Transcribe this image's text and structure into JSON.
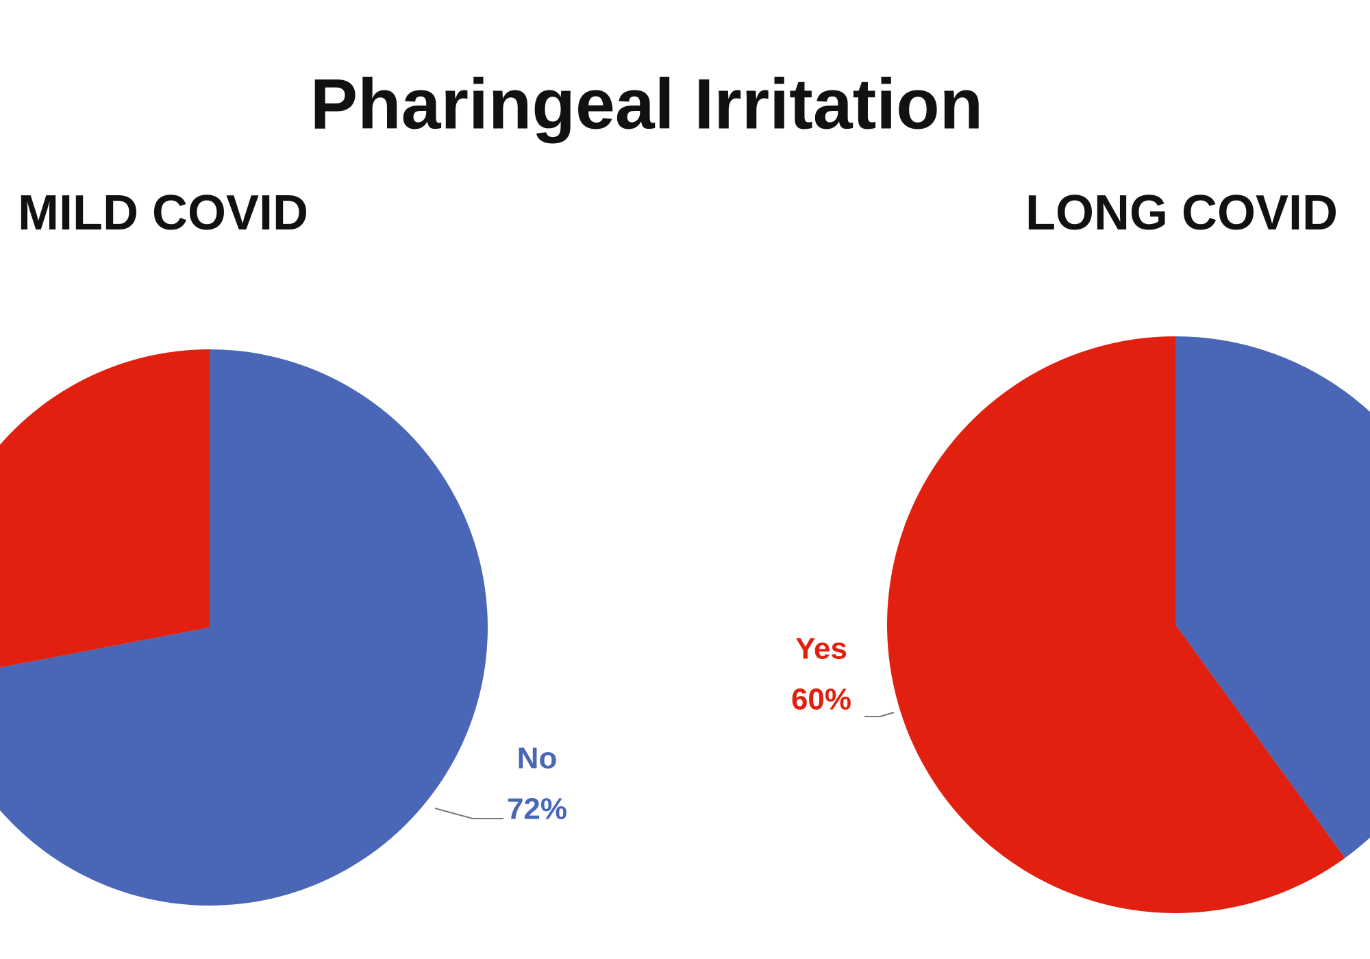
{
  "title": "Pharingeal Irritation",
  "chart_data": [
    {
      "type": "pie",
      "title": "MILD COVID",
      "categories": [
        "No",
        null
      ],
      "values": [
        72,
        28
      ],
      "value_labels": [
        "72%",
        null
      ],
      "colors": [
        "#4a66b6",
        "#e2200f"
      ]
    },
    {
      "type": "pie",
      "title": "LONG COVID",
      "categories": [
        null,
        "Yes"
      ],
      "values": [
        40,
        60
      ],
      "value_labels": [
        null,
        "60%"
      ],
      "colors": [
        "#4a66b6",
        "#e2200f"
      ]
    }
  ]
}
